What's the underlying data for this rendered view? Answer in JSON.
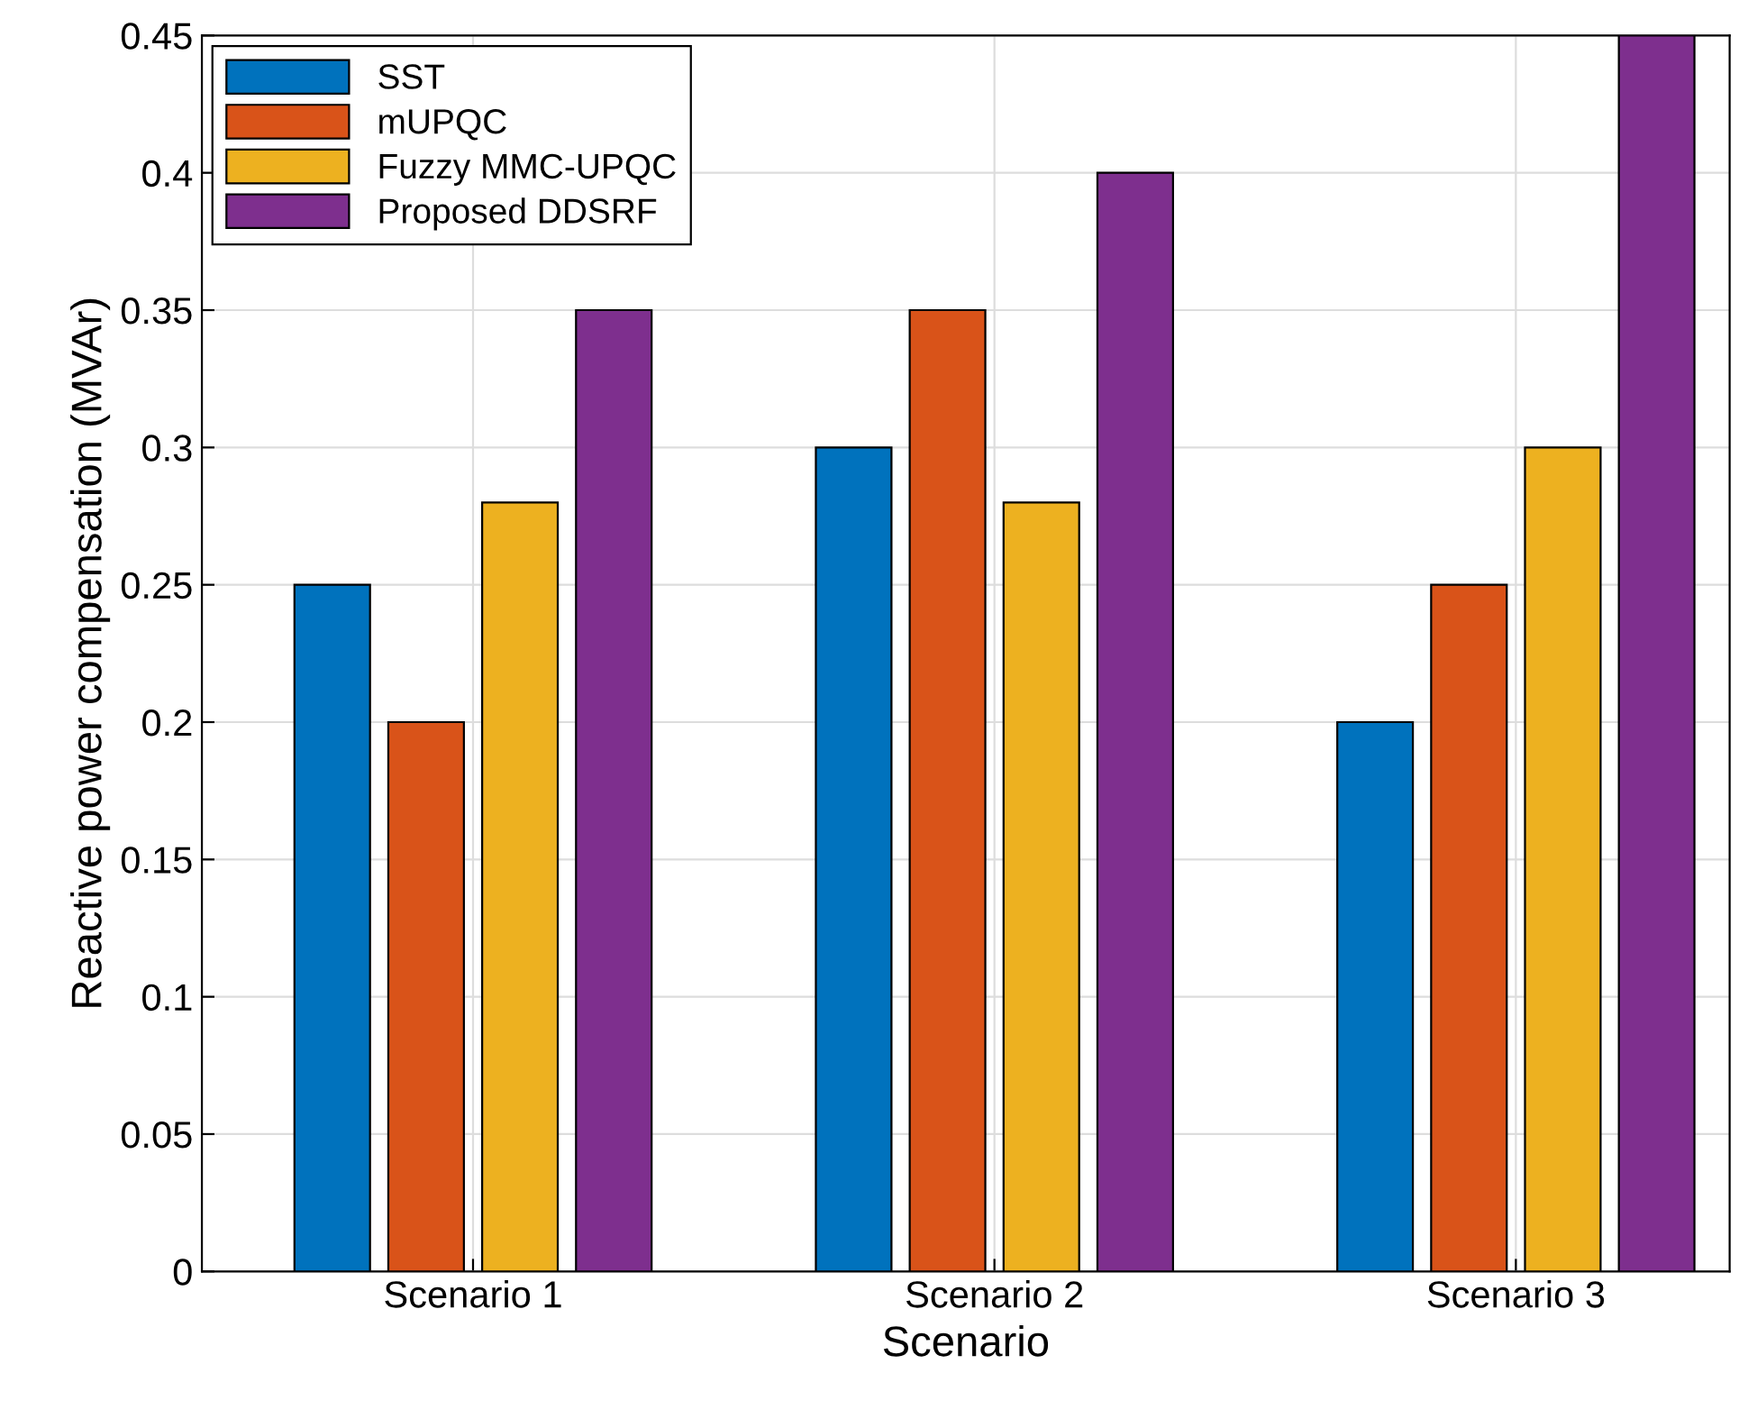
{
  "chart_data": {
    "type": "bar",
    "xlabel": "Scenario",
    "ylabel": "Reactive power compensation (MVAr)",
    "categories": [
      "Scenario 1",
      "Scenario 2",
      "Scenario 3"
    ],
    "series": [
      {
        "name": "SST",
        "color": "#0072bd",
        "values": [
          0.25,
          0.3,
          0.2
        ]
      },
      {
        "name": "mUPQC",
        "color": "#d95319",
        "values": [
          0.2,
          0.35,
          0.25
        ]
      },
      {
        "name": "Fuzzy MMC-UPQC",
        "color": "#edb120",
        "values": [
          0.28,
          0.28,
          0.3
        ]
      },
      {
        "name": "Proposed DDSRF",
        "color": "#7e2f8e",
        "values": [
          0.35,
          0.4,
          0.45
        ]
      }
    ],
    "ylim": [
      0,
      0.45
    ],
    "yticks": [
      0,
      0.05,
      0.1,
      0.15,
      0.2,
      0.25,
      0.3,
      0.35,
      0.4,
      0.45
    ],
    "grid": true,
    "legend": "top left"
  }
}
